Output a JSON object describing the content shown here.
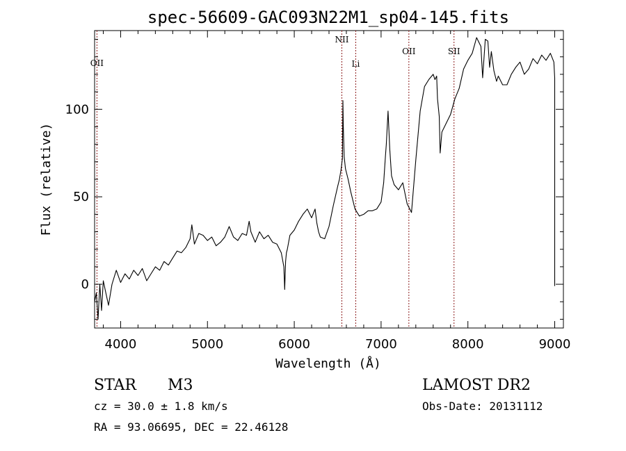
{
  "chart_data": {
    "type": "line",
    "title": "spec-56609-GAC093N22M1_sp04-145.fits",
    "xlabel": "Wavelength (Å)",
    "ylabel": "Flux (relative)",
    "xlim": [
      3700,
      9100
    ],
    "ylim": [
      -25,
      145
    ],
    "xticks": [
      4000,
      5000,
      6000,
      7000,
      8000,
      9000
    ],
    "yticks": [
      0,
      50,
      100
    ],
    "grid": false,
    "series": [
      {
        "color": "#000000",
        "x": [
          3700,
          3720,
          3740,
          3760,
          3780,
          3800,
          3830,
          3860,
          3900,
          3950,
          4000,
          4050,
          4100,
          4150,
          4200,
          4250,
          4300,
          4350,
          4400,
          4450,
          4500,
          4550,
          4600,
          4650,
          4700,
          4750,
          4800,
          4820,
          4850,
          4900,
          4950,
          5000,
          5050,
          5100,
          5150,
          5200,
          5250,
          5300,
          5350,
          5400,
          5450,
          5480,
          5500,
          5550,
          5600,
          5650,
          5700,
          5750,
          5800,
          5850,
          5880,
          5890,
          5900,
          5910,
          5920,
          5950,
          6000,
          6050,
          6100,
          6150,
          6200,
          6240,
          6260,
          6280,
          6300,
          6350,
          6400,
          6450,
          6500,
          6520,
          6540,
          6555,
          6560,
          6565,
          6575,
          6590,
          6620,
          6650,
          6700,
          6750,
          6800,
          6850,
          6900,
          6950,
          7000,
          7030,
          7050,
          7060,
          7080,
          7100,
          7120,
          7150,
          7200,
          7250,
          7300,
          7350,
          7400,
          7450,
          7500,
          7550,
          7600,
          7620,
          7640,
          7650,
          7670,
          7680,
          7700,
          7750,
          7800,
          7850,
          7900,
          7950,
          8000,
          8050,
          8100,
          8150,
          8170,
          8200,
          8230,
          8250,
          8270,
          8300,
          8330,
          8350,
          8400,
          8450,
          8500,
          8550,
          8600,
          8650,
          8700,
          8750,
          8800,
          8850,
          8900,
          8950,
          8990,
          9000,
          9000
        ],
        "y": [
          -10,
          -5,
          -20,
          0,
          -15,
          2,
          -5,
          -12,
          0,
          8,
          1,
          6,
          3,
          8,
          5,
          9,
          2,
          6,
          10,
          8,
          13,
          11,
          15,
          19,
          18,
          21,
          26,
          34,
          23,
          29,
          28,
          25,
          27,
          22,
          24,
          27,
          33,
          27,
          25,
          29,
          28,
          36,
          30,
          24,
          30,
          26,
          28,
          24,
          23,
          18,
          10,
          -3,
          13,
          18,
          20,
          28,
          31,
          36,
          40,
          43,
          38,
          43,
          35,
          30,
          27,
          26,
          33,
          45,
          56,
          60,
          66,
          72,
          105,
          90,
          73,
          66,
          60,
          53,
          43,
          39,
          40,
          42,
          42,
          43,
          47,
          58,
          73,
          80,
          99,
          77,
          62,
          57,
          54,
          58,
          46,
          41,
          71,
          99,
          113,
          117,
          120,
          117,
          119,
          106,
          96,
          75,
          87,
          92,
          97,
          106,
          112,
          123,
          128,
          132,
          141,
          136,
          118,
          140,
          139,
          124,
          133,
          122,
          116,
          119,
          114,
          114,
          120,
          124,
          127,
          120,
          123,
          129,
          126,
          131,
          128,
          132,
          127,
          118,
          -1
        ]
      }
    ],
    "emission_lines": [
      {
        "label": "OII",
        "wavelength": 3727
      },
      {
        "label": "NII",
        "wavelength": 6548
      },
      {
        "label": "Li",
        "wavelength": 6708
      },
      {
        "label": "OII",
        "wavelength": 7320
      },
      {
        "label": "SII",
        "wavelength": 7840
      }
    ]
  },
  "info": {
    "class": "STAR",
    "subclass": "M3",
    "survey": "LAMOST DR2",
    "cz": "cz = 30.0 ± 1.8 km/s",
    "obs_date": "Obs-Date: 20131112",
    "radec": "RA =  93.06695, DEC =  22.46128"
  }
}
